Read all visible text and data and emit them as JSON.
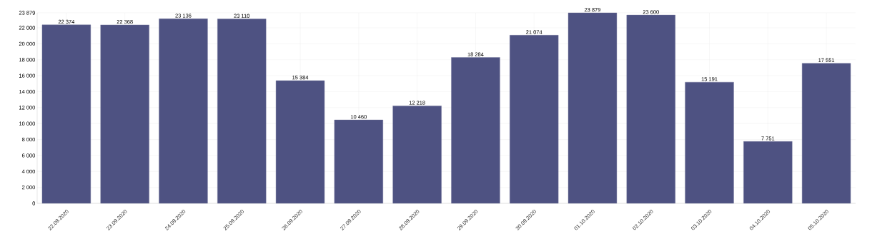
{
  "chart_data": {
    "type": "bar",
    "categories": [
      "22.09.2020",
      "23.09.2020",
      "24.09.2020",
      "25.09.2020",
      "26.09.2020",
      "27.09.2020",
      "28.09.2020",
      "29.09.2020",
      "30.09.2020",
      "01.10.2020",
      "02.10.2020",
      "03.10.2020",
      "04.10.2020",
      "05.10.2020"
    ],
    "values": [
      22374,
      22368,
      23136,
      23110,
      15384,
      10460,
      12218,
      18284,
      21074,
      23879,
      23600,
      15191,
      7751,
      17551
    ],
    "value_labels": [
      "22 374",
      "22 368",
      "23 136",
      "23 110",
      "15 384",
      "10 460",
      "12 218",
      "18 284",
      "21 074",
      "23 879",
      "23 600",
      "15 191",
      "7 751",
      "17 551"
    ],
    "color": "#4e5282",
    "ylim": [
      0,
      23879
    ],
    "yticks": [
      0,
      {
        "value": 2000,
        "label": "2 000"
      },
      {
        "value": 4000,
        "label": "4 000"
      },
      {
        "value": 6000,
        "label": "6 000"
      },
      {
        "value": 8000,
        "label": "8 000"
      },
      {
        "value": 10000,
        "label": "10 000"
      },
      {
        "value": 12000,
        "label": "12 000"
      },
      {
        "value": 14000,
        "label": "14 000"
      },
      {
        "value": 16000,
        "label": "16 000"
      },
      {
        "value": 18000,
        "label": "18 000"
      },
      {
        "value": 20000,
        "label": "20 000"
      },
      {
        "value": 22000,
        "label": "22 000"
      },
      {
        "value": 23879,
        "label": "23 879"
      }
    ],
    "grid": true
  }
}
